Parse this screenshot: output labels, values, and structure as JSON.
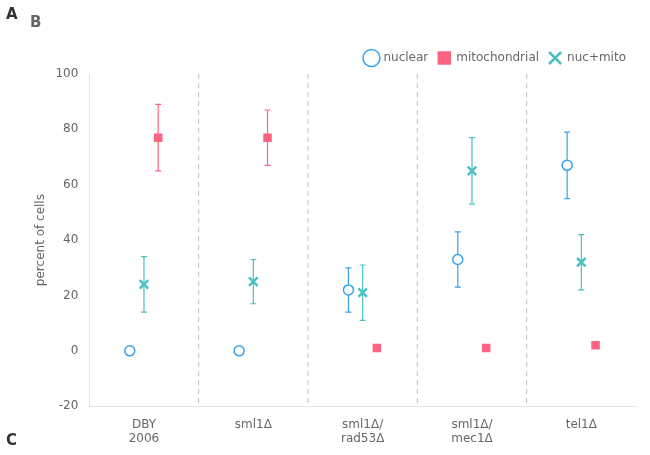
{
  "chart_data": {
    "type": "scatter",
    "title": "B",
    "annotations": [
      "A",
      "C"
    ],
    "ylabel": "percent of cells",
    "categories": [
      "DBY\n2006",
      "sml1Δ",
      "sml1Δ/\nrad53Δ",
      "sml1Δ/\nmec1Δ",
      "tel1Δ"
    ],
    "series": [
      {
        "name": "nuclear",
        "marker": "circle",
        "values": [
          0,
          0,
          22,
          33,
          67
        ],
        "errors": [
          1,
          1,
          8,
          10,
          12
        ]
      },
      {
        "name": "mitochondrial",
        "marker": "square",
        "values": [
          77,
          77,
          1,
          1,
          2
        ],
        "errors": [
          12,
          10,
          1,
          1,
          1
        ]
      },
      {
        "name": "nuc+mito",
        "marker": "x",
        "values": [
          24,
          25,
          21,
          65,
          32
        ],
        "errors": [
          10,
          8,
          10,
          12,
          10
        ]
      }
    ],
    "ylim": [
      -20,
      100
    ],
    "yticks": [
      -20,
      0,
      20,
      40,
      60,
      80,
      100
    ],
    "grid": false,
    "legend": "upper right"
  }
}
